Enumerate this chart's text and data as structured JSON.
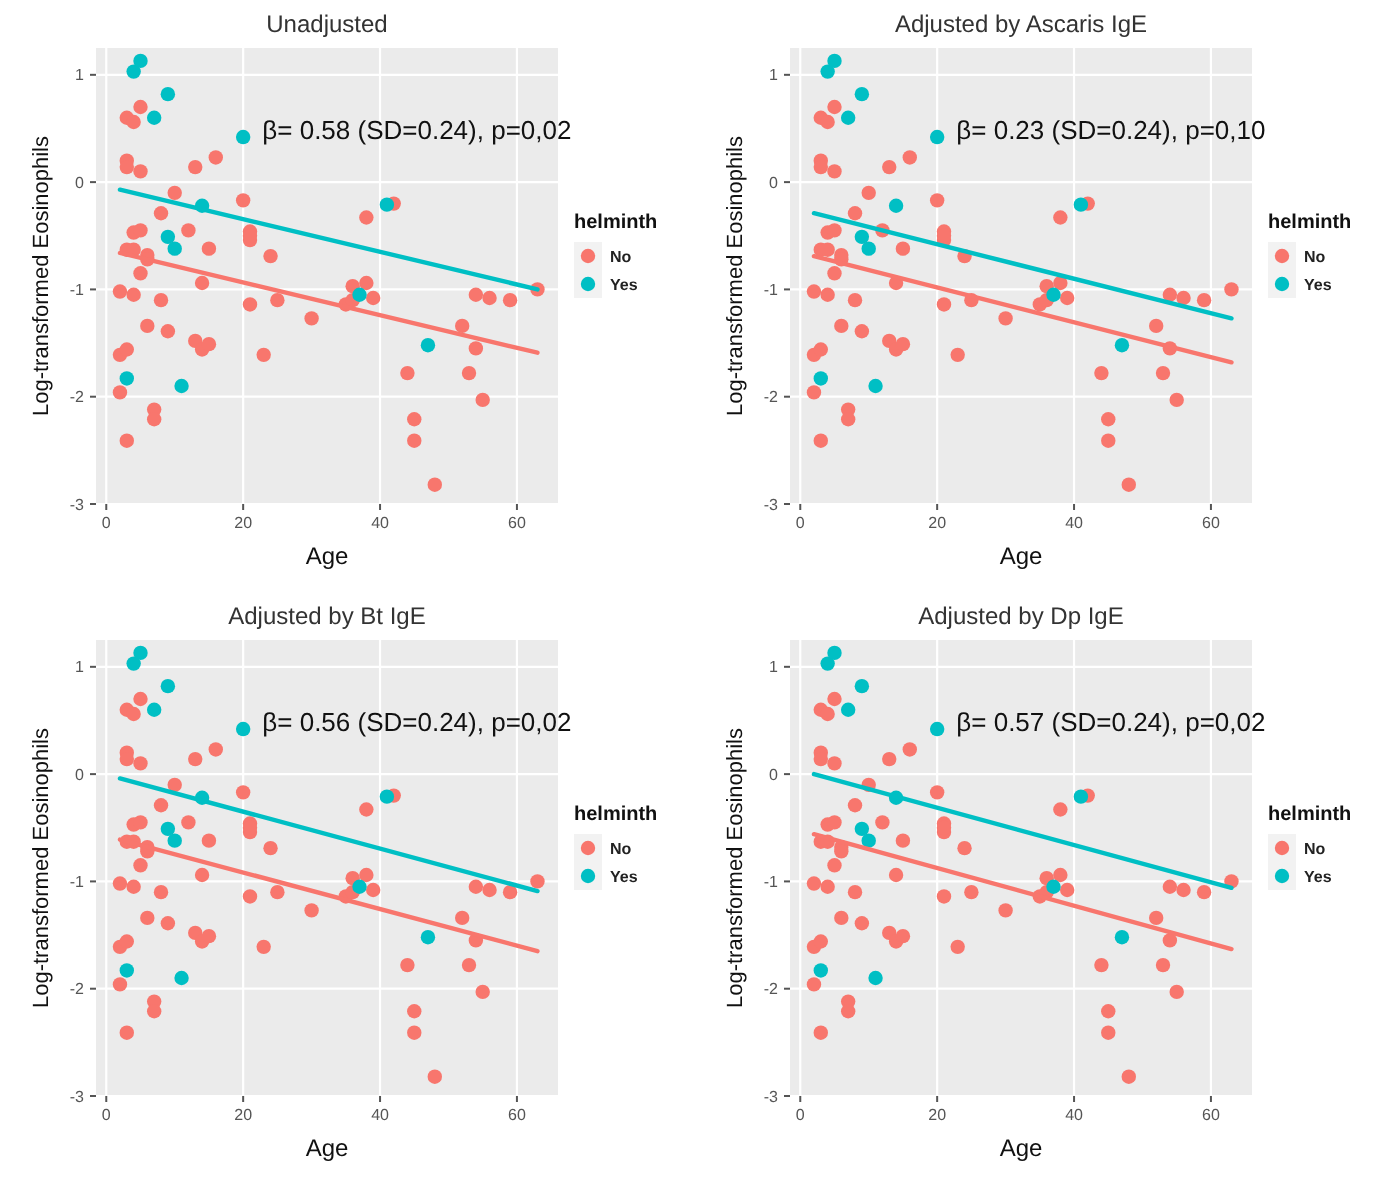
{
  "chart_data": [
    {
      "type": "scatter",
      "title": "Unadjusted",
      "xlabel": "Age",
      "ylabel": "Log-transformed Eosinophils",
      "legend_title": "helminth",
      "legend": "right",
      "grid": true,
      "marker": "circle",
      "xlim": [
        -1.5,
        66
      ],
      "ylim": [
        -3,
        1.25
      ],
      "xticks": [
        0,
        20,
        40,
        60
      ],
      "yticks": [
        -3,
        -2,
        -1,
        0,
        1
      ],
      "annotations": [
        "β= 0.58 (SD=0.24), p=0,02"
      ],
      "series": [
        {
          "name": "No",
          "color": "#f8766d",
          "x": [
            3,
            4,
            5,
            3,
            3,
            5,
            16,
            13,
            10,
            8,
            20,
            21,
            21,
            21,
            12,
            4,
            5,
            3,
            4,
            6,
            6,
            5,
            15,
            24,
            38,
            42,
            14,
            2,
            4,
            8,
            21,
            25,
            30,
            35,
            36,
            36,
            38,
            39,
            54,
            56,
            59,
            63,
            52,
            54,
            53,
            55,
            44,
            45,
            45,
            48,
            6,
            9,
            13,
            14,
            15,
            23,
            2,
            3,
            2,
            7,
            7,
            3
          ],
          "values": [
            0.6,
            0.56,
            0.7,
            0.2,
            0.14,
            0.1,
            0.23,
            0.14,
            -0.1,
            -0.29,
            -0.17,
            -0.46,
            -0.54,
            -0.5,
            -0.45,
            -0.47,
            -0.45,
            -0.63,
            -0.63,
            -0.68,
            -0.72,
            -0.85,
            -0.62,
            -0.69,
            -0.33,
            -0.2,
            -0.94,
            -1.02,
            -1.05,
            -1.1,
            -1.14,
            -1.1,
            -1.27,
            -1.14,
            -0.97,
            -1.1,
            -0.94,
            -1.08,
            -1.05,
            -1.08,
            -1.1,
            -1.0,
            -1.34,
            -1.55,
            -1.78,
            -2.03,
            -1.78,
            -2.21,
            -2.41,
            -2.82,
            -1.34,
            -1.39,
            -1.48,
            -1.56,
            -1.51,
            -1.61,
            -1.61,
            -1.56,
            -1.96,
            -2.12,
            -2.21,
            -2.41
          ]
        },
        {
          "name": "Yes",
          "color": "#00bfc4",
          "x": [
            4,
            5,
            9,
            7,
            20,
            14,
            9,
            10,
            41,
            37,
            47,
            3,
            11
          ],
          "values": [
            1.03,
            1.13,
            0.82,
            0.6,
            0.42,
            -0.22,
            -0.51,
            -0.62,
            -0.21,
            -1.05,
            -1.52,
            -1.83,
            -1.9
          ]
        },
        {
          "type": "line",
          "marker": "none",
          "color": "#f8766d",
          "x": [
            2,
            63
          ],
          "values": [
            -0.66,
            -1.59
          ]
        },
        {
          "type": "line",
          "marker": "none",
          "color": "#00bfc4",
          "x": [
            2,
            63
          ],
          "values": [
            -0.07,
            -1.0
          ]
        }
      ]
    },
    {
      "type": "scatter",
      "title": "Adjusted by Ascaris IgE",
      "xlabel": "Age",
      "ylabel": "Log-transformed Eosinophils",
      "legend_title": "helminth",
      "legend": "right",
      "grid": true,
      "marker": "circle",
      "xlim": [
        -1.5,
        66
      ],
      "ylim": [
        -3,
        1.25
      ],
      "xticks": [
        0,
        20,
        40,
        60
      ],
      "yticks": [
        -3,
        -2,
        -1,
        0,
        1
      ],
      "annotations": [
        "β= 0.23 (SD=0.24), p=0,10"
      ],
      "series": [
        {
          "name": "No",
          "color": "#f8766d",
          "x": [
            3,
            4,
            5,
            3,
            3,
            5,
            16,
            13,
            10,
            8,
            20,
            21,
            21,
            21,
            12,
            4,
            5,
            3,
            4,
            6,
            6,
            5,
            15,
            24,
            38,
            42,
            14,
            2,
            4,
            8,
            21,
            25,
            30,
            35,
            36,
            36,
            38,
            39,
            54,
            56,
            59,
            63,
            52,
            54,
            53,
            55,
            44,
            45,
            45,
            48,
            6,
            9,
            13,
            14,
            15,
            23,
            2,
            3,
            2,
            7,
            7,
            3
          ],
          "values": [
            0.6,
            0.56,
            0.7,
            0.2,
            0.14,
            0.1,
            0.23,
            0.14,
            -0.1,
            -0.29,
            -0.17,
            -0.46,
            -0.54,
            -0.5,
            -0.45,
            -0.47,
            -0.45,
            -0.63,
            -0.63,
            -0.68,
            -0.72,
            -0.85,
            -0.62,
            -0.69,
            -0.33,
            -0.2,
            -0.94,
            -1.02,
            -1.05,
            -1.1,
            -1.14,
            -1.1,
            -1.27,
            -1.14,
            -0.97,
            -1.1,
            -0.94,
            -1.08,
            -1.05,
            -1.08,
            -1.1,
            -1.0,
            -1.34,
            -1.55,
            -1.78,
            -2.03,
            -1.78,
            -2.21,
            -2.41,
            -2.82,
            -1.34,
            -1.39,
            -1.48,
            -1.56,
            -1.51,
            -1.61,
            -1.61,
            -1.56,
            -1.96,
            -2.12,
            -2.21,
            -2.41
          ]
        },
        {
          "name": "Yes",
          "color": "#00bfc4",
          "x": [
            4,
            5,
            9,
            7,
            20,
            14,
            9,
            10,
            41,
            37,
            47,
            3,
            11
          ],
          "values": [
            1.03,
            1.13,
            0.82,
            0.6,
            0.42,
            -0.22,
            -0.51,
            -0.62,
            -0.21,
            -1.05,
            -1.52,
            -1.83,
            -1.9
          ]
        },
        {
          "type": "line",
          "marker": "none",
          "color": "#f8766d",
          "x": [
            2,
            63
          ],
          "values": [
            -0.69,
            -1.68
          ]
        },
        {
          "type": "line",
          "marker": "none",
          "color": "#00bfc4",
          "x": [
            2,
            63
          ],
          "values": [
            -0.29,
            -1.27
          ]
        }
      ]
    },
    {
      "type": "scatter",
      "title": "Adjusted by Bt IgE",
      "xlabel": "Age",
      "ylabel": "Log-transformed Eosinophils",
      "legend_title": "helminth",
      "legend": "right",
      "grid": true,
      "marker": "circle",
      "xlim": [
        -1.5,
        66
      ],
      "ylim": [
        -3,
        1.25
      ],
      "xticks": [
        0,
        20,
        40,
        60
      ],
      "yticks": [
        -3,
        -2,
        -1,
        0,
        1
      ],
      "annotations": [
        "β= 0.56 (SD=0.24), p=0,02"
      ],
      "series": [
        {
          "name": "No",
          "color": "#f8766d",
          "x": [
            3,
            4,
            5,
            3,
            3,
            5,
            16,
            13,
            10,
            8,
            20,
            21,
            21,
            21,
            12,
            4,
            5,
            3,
            4,
            6,
            6,
            5,
            15,
            24,
            38,
            42,
            14,
            2,
            4,
            8,
            21,
            25,
            30,
            35,
            36,
            36,
            38,
            39,
            54,
            56,
            59,
            63,
            52,
            54,
            53,
            55,
            44,
            45,
            45,
            48,
            6,
            9,
            13,
            14,
            15,
            23,
            2,
            3,
            2,
            7,
            7,
            3
          ],
          "values": [
            0.6,
            0.56,
            0.7,
            0.2,
            0.14,
            0.1,
            0.23,
            0.14,
            -0.1,
            -0.29,
            -0.17,
            -0.46,
            -0.54,
            -0.5,
            -0.45,
            -0.47,
            -0.45,
            -0.63,
            -0.63,
            -0.68,
            -0.72,
            -0.85,
            -0.62,
            -0.69,
            -0.33,
            -0.2,
            -0.94,
            -1.02,
            -1.05,
            -1.1,
            -1.14,
            -1.1,
            -1.27,
            -1.14,
            -0.97,
            -1.1,
            -0.94,
            -1.08,
            -1.05,
            -1.08,
            -1.1,
            -1.0,
            -1.34,
            -1.55,
            -1.78,
            -2.03,
            -1.78,
            -2.21,
            -2.41,
            -2.82,
            -1.34,
            -1.39,
            -1.48,
            -1.56,
            -1.51,
            -1.61,
            -1.61,
            -1.56,
            -1.96,
            -2.12,
            -2.21,
            -2.41
          ]
        },
        {
          "name": "Yes",
          "color": "#00bfc4",
          "x": [
            4,
            5,
            9,
            7,
            20,
            14,
            9,
            10,
            41,
            37,
            47,
            3,
            11
          ],
          "values": [
            1.03,
            1.13,
            0.82,
            0.6,
            0.42,
            -0.22,
            -0.51,
            -0.62,
            -0.21,
            -1.05,
            -1.52,
            -1.83,
            -1.9
          ]
        },
        {
          "type": "line",
          "marker": "none",
          "color": "#f8766d",
          "x": [
            2,
            63
          ],
          "values": [
            -0.61,
            -1.65
          ]
        },
        {
          "type": "line",
          "marker": "none",
          "color": "#00bfc4",
          "x": [
            2,
            63
          ],
          "values": [
            -0.04,
            -1.09
          ]
        }
      ]
    },
    {
      "type": "scatter",
      "title": "Adjusted by Dp IgE",
      "xlabel": "Age",
      "ylabel": "Log-transformed Eosinophils",
      "legend_title": "helminth",
      "legend": "right",
      "grid": true,
      "marker": "circle",
      "xlim": [
        -1.5,
        66
      ],
      "ylim": [
        -3,
        1.25
      ],
      "xticks": [
        0,
        20,
        40,
        60
      ],
      "yticks": [
        -3,
        -2,
        -1,
        0,
        1
      ],
      "annotations": [
        "β= 0.57 (SD=0.24), p=0,02"
      ],
      "series": [
        {
          "name": "No",
          "color": "#f8766d",
          "x": [
            3,
            4,
            5,
            3,
            3,
            5,
            16,
            13,
            10,
            8,
            20,
            21,
            21,
            21,
            12,
            4,
            5,
            3,
            4,
            6,
            6,
            5,
            15,
            24,
            38,
            42,
            14,
            2,
            4,
            8,
            21,
            25,
            30,
            35,
            36,
            36,
            38,
            39,
            54,
            56,
            59,
            63,
            52,
            54,
            53,
            55,
            44,
            45,
            45,
            48,
            6,
            9,
            13,
            14,
            15,
            23,
            2,
            3,
            2,
            7,
            7,
            3
          ],
          "values": [
            0.6,
            0.56,
            0.7,
            0.2,
            0.14,
            0.1,
            0.23,
            0.14,
            -0.1,
            -0.29,
            -0.17,
            -0.46,
            -0.54,
            -0.5,
            -0.45,
            -0.47,
            -0.45,
            -0.63,
            -0.63,
            -0.68,
            -0.72,
            -0.85,
            -0.62,
            -0.69,
            -0.33,
            -0.2,
            -0.94,
            -1.02,
            -1.05,
            -1.1,
            -1.14,
            -1.1,
            -1.27,
            -1.14,
            -0.97,
            -1.1,
            -0.94,
            -1.08,
            -1.05,
            -1.08,
            -1.1,
            -1.0,
            -1.34,
            -1.55,
            -1.78,
            -2.03,
            -1.78,
            -2.21,
            -2.41,
            -2.82,
            -1.34,
            -1.39,
            -1.48,
            -1.56,
            -1.51,
            -1.61,
            -1.61,
            -1.56,
            -1.96,
            -2.12,
            -2.21,
            -2.41
          ]
        },
        {
          "name": "Yes",
          "color": "#00bfc4",
          "x": [
            4,
            5,
            9,
            7,
            20,
            14,
            9,
            10,
            41,
            37,
            47,
            3,
            11
          ],
          "values": [
            1.03,
            1.13,
            0.82,
            0.6,
            0.42,
            -0.22,
            -0.51,
            -0.62,
            -0.21,
            -1.05,
            -1.52,
            -1.83,
            -1.9
          ]
        },
        {
          "type": "line",
          "marker": "none",
          "color": "#f8766d",
          "x": [
            2,
            63
          ],
          "values": [
            -0.56,
            -1.63
          ]
        },
        {
          "type": "line",
          "marker": "none",
          "color": "#00bfc4",
          "x": [
            2,
            63
          ],
          "values": [
            0.0,
            -1.06
          ]
        }
      ]
    }
  ]
}
